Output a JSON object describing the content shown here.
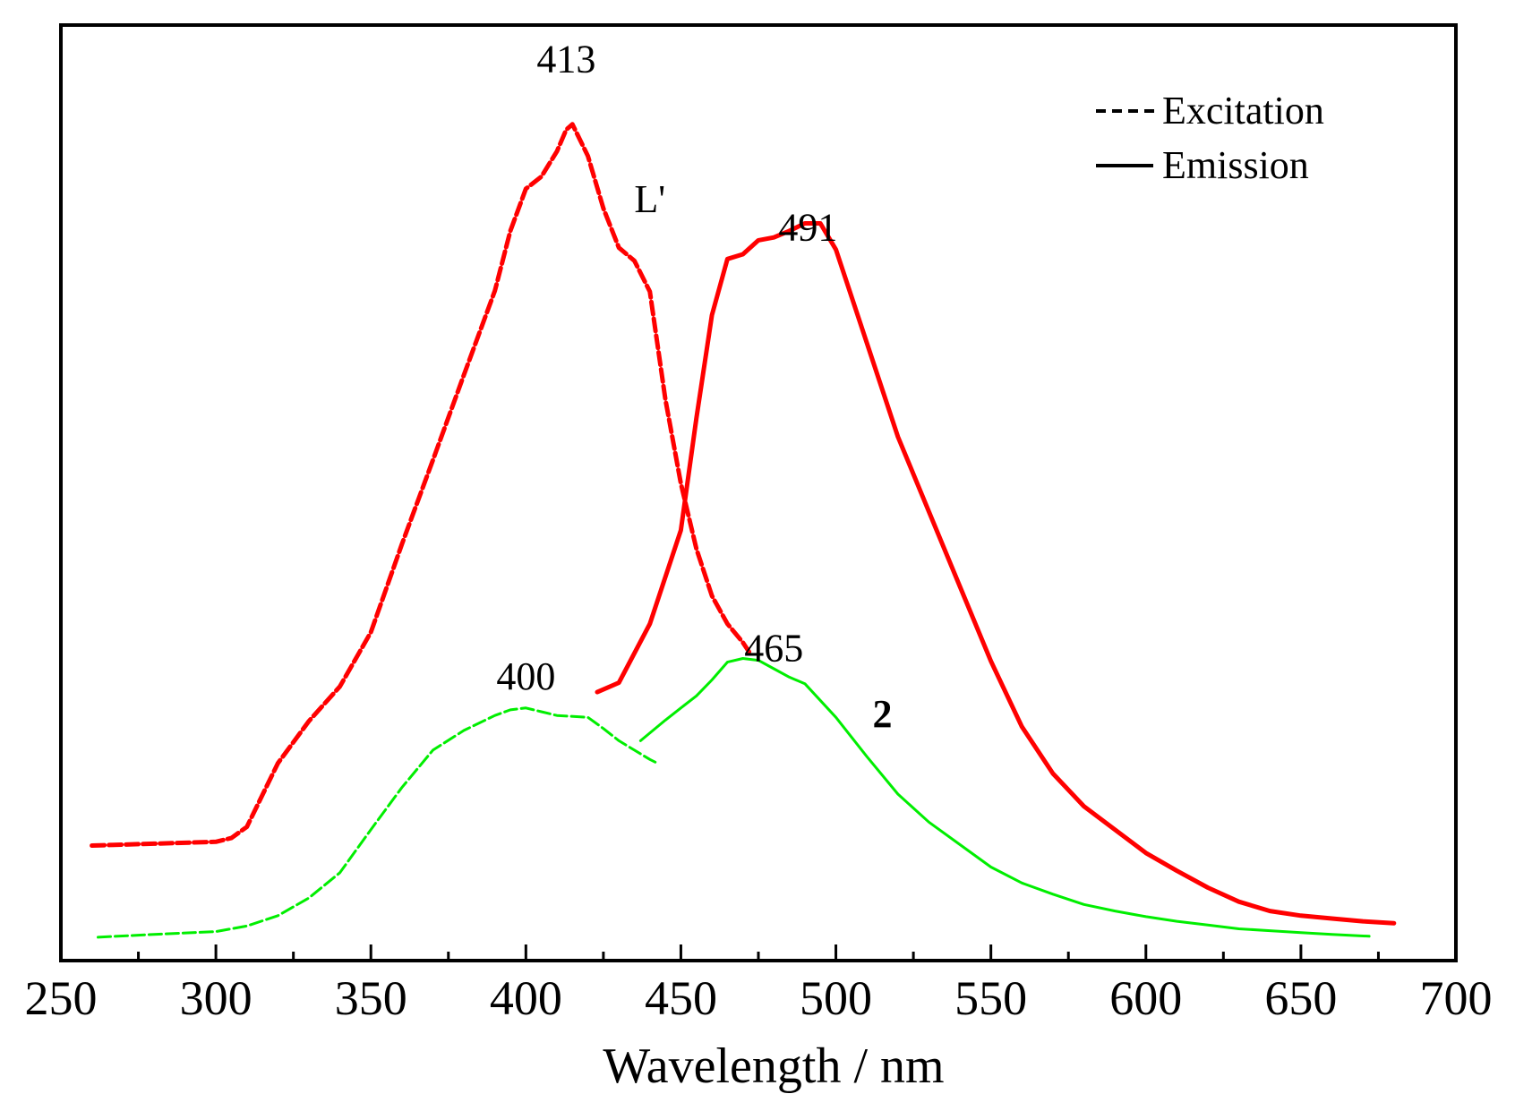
{
  "chart_data": {
    "type": "line",
    "xlabel": "Wavelength / nm",
    "ylabel": "",
    "xlim": [
      250,
      700
    ],
    "ylim": [
      0,
      1
    ],
    "x_ticks": [
      250,
      300,
      350,
      400,
      450,
      500,
      550,
      600,
      650,
      700
    ],
    "grid": false,
    "legend_position": "top-right",
    "legend": [
      {
        "label": "Excitation",
        "style": "dashed"
      },
      {
        "label": "Emission",
        "style": "solid"
      }
    ],
    "annotations": [
      {
        "text": "413",
        "x": 413,
        "y": 0.95
      },
      {
        "text": "L'",
        "x": 440,
        "y": 0.8
      },
      {
        "text": "491",
        "x": 491,
        "y": 0.77
      },
      {
        "text": "400",
        "x": 400,
        "y": 0.29
      },
      {
        "text": "465",
        "x": 480,
        "y": 0.32
      },
      {
        "text": "2",
        "x": 515,
        "y": 0.25
      }
    ],
    "series": [
      {
        "curve": "L' excitation",
        "color": "#ff0000",
        "dash": true,
        "x": [
          260,
          280,
          300,
          305,
          310,
          320,
          330,
          340,
          350,
          360,
          370,
          380,
          390,
          395,
          400,
          405,
          410,
          413,
          415,
          420,
          425,
          430,
          435,
          440,
          445,
          450,
          455,
          460,
          465,
          470,
          472
        ],
        "y": [
          0.123,
          0.125,
          0.127,
          0.131,
          0.143,
          0.211,
          0.256,
          0.293,
          0.351,
          0.445,
          0.535,
          0.626,
          0.716,
          0.78,
          0.825,
          0.838,
          0.865,
          0.888,
          0.894,
          0.86,
          0.804,
          0.762,
          0.748,
          0.715,
          0.6,
          0.51,
          0.44,
          0.39,
          0.36,
          0.34,
          0.33
        ]
      },
      {
        "curve": "L' emission",
        "color": "#ff0000",
        "dash": false,
        "x": [
          423,
          430,
          440,
          450,
          455,
          460,
          465,
          470,
          475,
          480,
          485,
          490,
          495,
          500,
          510,
          520,
          530,
          540,
          550,
          560,
          570,
          580,
          590,
          600,
          610,
          620,
          630,
          640,
          650,
          660,
          670,
          680
        ],
        "y": [
          0.287,
          0.297,
          0.36,
          0.46,
          0.58,
          0.69,
          0.75,
          0.755,
          0.77,
          0.773,
          0.78,
          0.788,
          0.788,
          0.76,
          0.66,
          0.56,
          0.48,
          0.4,
          0.32,
          0.25,
          0.2,
          0.165,
          0.14,
          0.115,
          0.096,
          0.078,
          0.063,
          0.053,
          0.048,
          0.045,
          0.042,
          0.04
        ]
      },
      {
        "curve": "2 excitation",
        "color": "#00ee00",
        "dash": true,
        "x": [
          262,
          280,
          300,
          310,
          320,
          330,
          340,
          350,
          360,
          370,
          380,
          390,
          395,
          400,
          405,
          410,
          420,
          425,
          430,
          435,
          440,
          443
        ],
        "y": [
          0.025,
          0.028,
          0.031,
          0.037,
          0.048,
          0.067,
          0.094,
          0.14,
          0.185,
          0.225,
          0.246,
          0.262,
          0.268,
          0.27,
          0.266,
          0.262,
          0.26,
          0.248,
          0.235,
          0.225,
          0.215,
          0.21
        ]
      },
      {
        "curve": "2 emission",
        "color": "#00ee00",
        "dash": false,
        "x": [
          437,
          445,
          450,
          455,
          460,
          465,
          470,
          475,
          480,
          485,
          490,
          500,
          510,
          520,
          530,
          540,
          550,
          560,
          570,
          580,
          590,
          600,
          610,
          620,
          630,
          640,
          650,
          660,
          672
        ],
        "y": [
          0.235,
          0.257,
          0.27,
          0.283,
          0.3,
          0.319,
          0.323,
          0.321,
          0.312,
          0.303,
          0.296,
          0.26,
          0.218,
          0.178,
          0.148,
          0.124,
          0.1,
          0.083,
          0.071,
          0.06,
          0.053,
          0.047,
          0.042,
          0.038,
          0.034,
          0.032,
          0.03,
          0.028,
          0.026
        ]
      }
    ]
  }
}
